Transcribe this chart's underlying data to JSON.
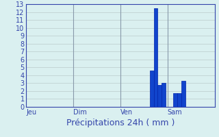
{
  "title": "",
  "xlabel": "Précipitations 24h ( mm )",
  "ylabel": "",
  "background_color": "#daf0f0",
  "bar_color": "#1144cc",
  "bar_color_dark": "#0022aa",
  "grid_color": "#bbcccc",
  "vline_color": "#8899aa",
  "axis_color": "#3344aa",
  "text_color": "#3344aa",
  "ylim": [
    0,
    13
  ],
  "yticks": [
    0,
    1,
    2,
    3,
    4,
    5,
    6,
    7,
    8,
    9,
    10,
    11,
    12,
    13
  ],
  "xlim": [
    0,
    96
  ],
  "num_hours": 96,
  "xtick_positions": [
    0,
    24,
    48,
    72
  ],
  "xtick_labels": [
    "Jeu",
    "Dim",
    "Ven",
    "Sam"
  ],
  "bar_positions": [
    64,
    66,
    68,
    70,
    76,
    78,
    80
  ],
  "bar_heights": [
    4.6,
    12.5,
    2.8,
    3.0,
    1.7,
    1.7,
    3.3
  ],
  "bar_width": 2.0,
  "vline_positions": [
    0,
    24,
    48,
    72
  ],
  "xlabel_fontsize": 9,
  "tick_fontsize": 7
}
